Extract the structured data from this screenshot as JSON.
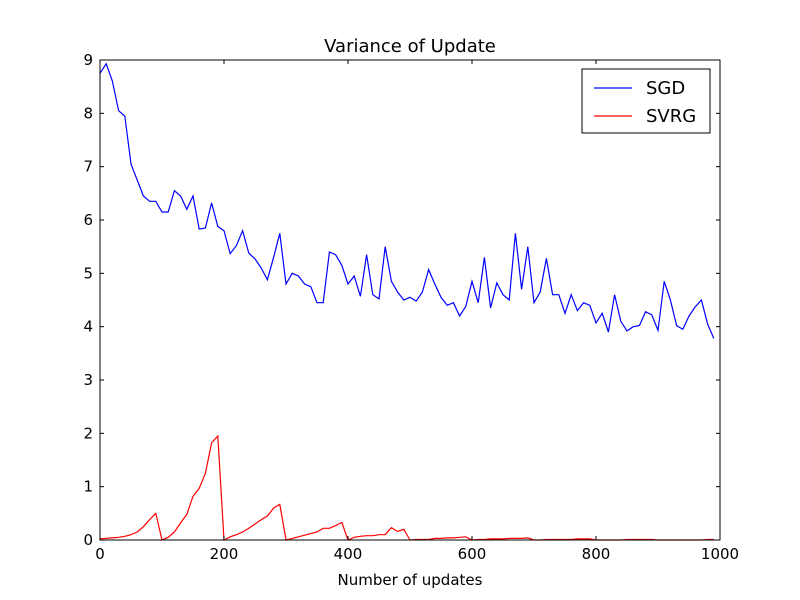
{
  "chart_data": {
    "type": "line",
    "title": "Variance of Update",
    "xlabel": "Number of updates",
    "ylabel": "",
    "xlim": [
      0,
      1000
    ],
    "ylim": [
      0,
      9
    ],
    "xticks": [
      0,
      200,
      400,
      600,
      800,
      1000
    ],
    "yticks": [
      0,
      1,
      2,
      3,
      4,
      5,
      6,
      7,
      8,
      9
    ],
    "grid": false,
    "legend_position": "top-right",
    "x": [
      0,
      10,
      20,
      30,
      40,
      50,
      60,
      70,
      80,
      90,
      100,
      110,
      120,
      130,
      140,
      150,
      160,
      170,
      180,
      190,
      200,
      210,
      220,
      230,
      240,
      250,
      260,
      270,
      280,
      290,
      300,
      310,
      320,
      330,
      340,
      350,
      360,
      370,
      380,
      390,
      400,
      410,
      420,
      430,
      440,
      450,
      460,
      470,
      480,
      490,
      500,
      510,
      520,
      530,
      540,
      550,
      560,
      570,
      580,
      590,
      600,
      610,
      620,
      630,
      640,
      650,
      660,
      670,
      680,
      690,
      700,
      710,
      720,
      730,
      740,
      750,
      760,
      770,
      780,
      790,
      800,
      810,
      820,
      830,
      840,
      850,
      860,
      870,
      880,
      890,
      900,
      910,
      920,
      930,
      940,
      950,
      960,
      970,
      980,
      990
    ],
    "series": [
      {
        "name": "SGD",
        "color": "#0000ff",
        "values": [
          8.75,
          8.93,
          8.6,
          8.05,
          7.95,
          7.05,
          6.75,
          6.45,
          6.35,
          6.35,
          6.15,
          6.15,
          6.55,
          6.45,
          6.2,
          6.45,
          5.83,
          5.85,
          6.32,
          5.88,
          5.8,
          5.37,
          5.52,
          5.8,
          5.38,
          5.27,
          5.1,
          4.88,
          5.3,
          5.75,
          4.8,
          5.0,
          4.95,
          4.8,
          4.75,
          4.45,
          4.45,
          5.4,
          5.35,
          5.15,
          4.8,
          4.95,
          4.57,
          5.35,
          4.6,
          4.52,
          5.5,
          4.85,
          4.65,
          4.5,
          4.55,
          4.48,
          4.65,
          5.07,
          4.8,
          4.55,
          4.4,
          4.45,
          4.2,
          4.38,
          4.85,
          4.45,
          5.3,
          4.35,
          4.82,
          4.6,
          4.5,
          5.75,
          4.7,
          5.5,
          4.45,
          4.65,
          5.28,
          4.6,
          4.6,
          4.25,
          4.6,
          4.3,
          4.45,
          4.4,
          4.07,
          4.25,
          3.9,
          4.6,
          4.1,
          3.92,
          4.0,
          4.02,
          4.28,
          4.22,
          3.93,
          4.85,
          4.5,
          4.02,
          3.95,
          4.2,
          4.37,
          4.5,
          4.05,
          3.78
        ]
      },
      {
        "name": "SVRG",
        "color": "#ff0000",
        "values": [
          0.02,
          0.03,
          0.04,
          0.05,
          0.07,
          0.1,
          0.15,
          0.25,
          0.38,
          0.5,
          0.0,
          0.05,
          0.15,
          0.32,
          0.48,
          0.82,
          0.97,
          1.25,
          1.82,
          1.95,
          0.0,
          0.06,
          0.1,
          0.15,
          0.22,
          0.3,
          0.38,
          0.45,
          0.6,
          0.67,
          0.0,
          0.03,
          0.06,
          0.09,
          0.12,
          0.15,
          0.22,
          0.22,
          0.27,
          0.33,
          0.0,
          0.05,
          0.07,
          0.08,
          0.08,
          0.1,
          0.1,
          0.23,
          0.16,
          0.2,
          0.0,
          0.01,
          0.01,
          0.01,
          0.03,
          0.03,
          0.04,
          0.04,
          0.05,
          0.06,
          0.0,
          0.01,
          0.01,
          0.02,
          0.02,
          0.02,
          0.03,
          0.03,
          0.03,
          0.04,
          0.0,
          0.0,
          0.01,
          0.01,
          0.01,
          0.01,
          0.01,
          0.02,
          0.02,
          0.02,
          0.0,
          0.0,
          0.0,
          0.0,
          0.0,
          0.01,
          0.01,
          0.01,
          0.01,
          0.01,
          0.0,
          0.0,
          0.0,
          0.0,
          0.0,
          0.0,
          0.0,
          0.0,
          0.01,
          0.01
        ]
      }
    ]
  }
}
